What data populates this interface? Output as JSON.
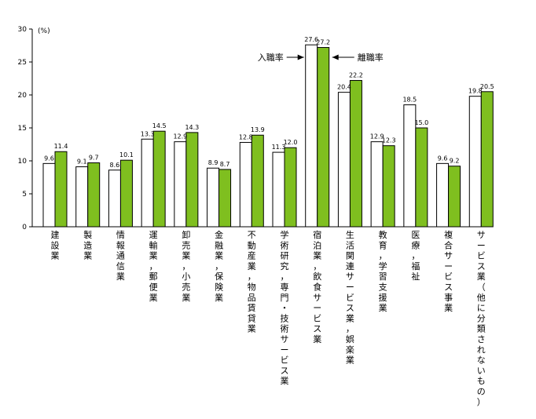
{
  "chart_data": {
    "type": "bar",
    "unit_label": "(%)",
    "ylim": [
      0,
      30
    ],
    "yticks": [
      0,
      5,
      10,
      15,
      20,
      25,
      30
    ],
    "grid": false,
    "legend": "none",
    "categories": [
      "建設業",
      "製造業",
      "情報通信業",
      "運輸業，郵便業",
      "卸売業，小売業",
      "金融業，保険業",
      "不動産業，物品賃貸業",
      "学術研究，専門・技術サービス業",
      "宿泊業，飲食サービス業",
      "生活関連サービス業，娯楽業",
      "教育，学習支援業",
      "医療，福祉",
      "複合サービス事業",
      "サービス業（他に分類されないもの）"
    ],
    "series": [
      {
        "name": "入職率",
        "color": "#ffffff",
        "values": [
          9.6,
          9.1,
          8.6,
          13.3,
          12.9,
          8.9,
          12.8,
          11.3,
          27.6,
          20.4,
          12.9,
          18.5,
          9.6,
          19.8
        ],
        "labels": [
          "9.6",
          "9.1",
          "8.6",
          "13.3",
          "12.9",
          "8.9",
          "12.8",
          "11.3",
          "27.6",
          "20.4",
          "12.9",
          "18.5",
          "9.6",
          "19.8"
        ]
      },
      {
        "name": "離職率",
        "color": "#7fbf1f",
        "values": [
          11.4,
          9.7,
          10.1,
          14.5,
          14.3,
          8.7,
          13.9,
          12.0,
          27.2,
          22.2,
          12.3,
          15.0,
          9.2,
          20.5
        ],
        "labels": [
          "11.4",
          "9.7",
          "10.1",
          "14.5",
          "14.3",
          "8.7",
          "13.9",
          "12.0",
          "27.2",
          "22.2",
          "12.3",
          "15.0",
          "9.2",
          "20.5"
        ]
      }
    ],
    "annotations": [
      {
        "text": "入職率",
        "category_index": 8,
        "series_index": 0,
        "side": "left"
      },
      {
        "text": "離職率",
        "category_index": 8,
        "series_index": 1,
        "side": "right"
      }
    ]
  }
}
